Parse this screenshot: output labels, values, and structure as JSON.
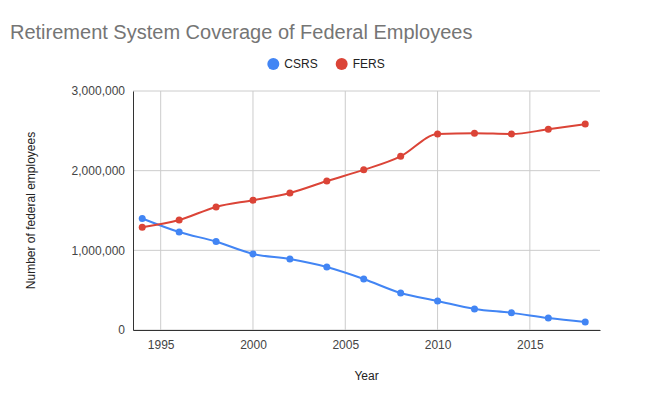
{
  "chart_data": {
    "type": "line",
    "title": "Retirement System Coverage of Federal Employees",
    "x_label": "Year",
    "y_label": "Number of federal employees",
    "x": [
      1994,
      1996,
      1998,
      2000,
      2002,
      2004,
      2006,
      2008,
      2010,
      2012,
      2014,
      2016,
      2018
    ],
    "series": [
      {
        "name": "CSRS",
        "color": "#4285f4",
        "marker": "circle",
        "line_style": "solid",
        "values": [
          1400000,
          1230000,
          1110000,
          955000,
          890000,
          790000,
          640000,
          465000,
          365000,
          265000,
          215000,
          150000,
          100000
        ]
      },
      {
        "name": "FERS",
        "color": "#db4437",
        "marker": "circle",
        "line_style": "solid",
        "values": [
          1290000,
          1380000,
          1545000,
          1630000,
          1720000,
          1870000,
          2010000,
          2180000,
          2460000,
          2470000,
          2460000,
          2520000,
          2585000
        ]
      }
    ],
    "xlim": [
      1993.5,
      2018.8
    ],
    "xticks": [
      1995,
      2000,
      2005,
      2010,
      2015
    ],
    "ylim": [
      0,
      3000000
    ],
    "yticks": [
      0,
      {
        "value": 1000000,
        "label": "1,000,000"
      },
      {
        "value": 2000000,
        "label": "2,000,000"
      },
      {
        "value": 3000000,
        "label": "3,000,000"
      }
    ],
    "grid": true,
    "legend": "top"
  }
}
